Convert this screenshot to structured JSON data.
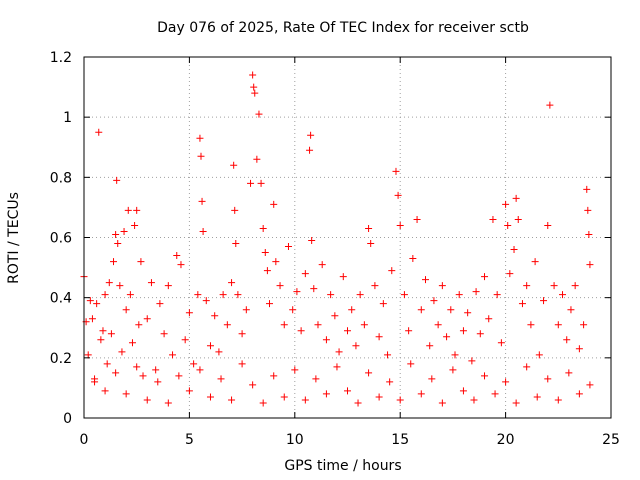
{
  "chart_data": {
    "type": "scatter",
    "title": "Day 076 of 2025, Rate Of TEC Index for receiver sctb",
    "xlabel": "GPS time / hours",
    "ylabel": "ROTI / TECUs",
    "xlim": [
      0,
      25
    ],
    "ylim": [
      0,
      1.2
    ],
    "x_ticks": [
      "0",
      "5",
      "10",
      "15",
      "20",
      "25"
    ],
    "y_ticks": [
      "0",
      "0.2",
      "0.4",
      "0.6",
      "0.8",
      "1",
      "1.2"
    ],
    "grid": true,
    "marker": "plus",
    "series_color": "#ff0000",
    "series": [
      {
        "points": [
          [
            0.0,
            0.47
          ],
          [
            0.1,
            0.32
          ],
          [
            0.2,
            0.21
          ],
          [
            0.3,
            0.39
          ],
          [
            0.4,
            0.33
          ],
          [
            0.5,
            0.13
          ],
          [
            0.6,
            0.38
          ],
          [
            0.7,
            0.95
          ],
          [
            0.8,
            0.26
          ],
          [
            0.9,
            0.29
          ],
          [
            1.0,
            0.41
          ],
          [
            1.1,
            0.18
          ],
          [
            1.2,
            0.45
          ],
          [
            1.3,
            0.28
          ],
          [
            1.4,
            0.52
          ],
          [
            1.5,
            0.61
          ],
          [
            1.55,
            0.79
          ],
          [
            1.6,
            0.58
          ],
          [
            1.7,
            0.44
          ],
          [
            1.8,
            0.22
          ],
          [
            1.9,
            0.62
          ],
          [
            2.0,
            0.36
          ],
          [
            2.1,
            0.69
          ],
          [
            2.2,
            0.41
          ],
          [
            2.3,
            0.25
          ],
          [
            2.4,
            0.64
          ],
          [
            2.5,
            0.69
          ],
          [
            2.6,
            0.31
          ],
          [
            2.7,
            0.52
          ],
          [
            2.8,
            0.14
          ],
          [
            3.0,
            0.33
          ],
          [
            3.2,
            0.45
          ],
          [
            3.4,
            0.16
          ],
          [
            3.6,
            0.38
          ],
          [
            3.8,
            0.28
          ],
          [
            4.0,
            0.44
          ],
          [
            4.2,
            0.21
          ],
          [
            4.4,
            0.54
          ],
          [
            4.6,
            0.51
          ],
          [
            4.8,
            0.26
          ],
          [
            5.0,
            0.35
          ],
          [
            5.2,
            0.18
          ],
          [
            5.4,
            0.41
          ],
          [
            5.5,
            0.93
          ],
          [
            5.55,
            0.87
          ],
          [
            5.6,
            0.72
          ],
          [
            5.65,
            0.62
          ],
          [
            5.8,
            0.39
          ],
          [
            6.0,
            0.24
          ],
          [
            6.2,
            0.34
          ],
          [
            6.4,
            0.22
          ],
          [
            6.6,
            0.41
          ],
          [
            6.8,
            0.31
          ],
          [
            7.0,
            0.45
          ],
          [
            7.1,
            0.84
          ],
          [
            7.15,
            0.69
          ],
          [
            7.2,
            0.58
          ],
          [
            7.3,
            0.41
          ],
          [
            7.5,
            0.28
          ],
          [
            7.7,
            0.36
          ],
          [
            7.9,
            0.78
          ],
          [
            8.0,
            1.14
          ],
          [
            8.05,
            1.1
          ],
          [
            8.1,
            1.08
          ],
          [
            8.2,
            0.86
          ],
          [
            8.3,
            1.01
          ],
          [
            8.4,
            0.78
          ],
          [
            8.5,
            0.63
          ],
          [
            8.6,
            0.55
          ],
          [
            8.7,
            0.49
          ],
          [
            8.8,
            0.38
          ],
          [
            9.0,
            0.71
          ],
          [
            9.1,
            0.52
          ],
          [
            9.3,
            0.44
          ],
          [
            9.5,
            0.31
          ],
          [
            9.7,
            0.57
          ],
          [
            9.9,
            0.36
          ],
          [
            10.1,
            0.42
          ],
          [
            10.3,
            0.29
          ],
          [
            10.5,
            0.48
          ],
          [
            10.7,
            0.89
          ],
          [
            10.75,
            0.94
          ],
          [
            10.8,
            0.59
          ],
          [
            10.9,
            0.43
          ],
          [
            11.1,
            0.31
          ],
          [
            11.3,
            0.51
          ],
          [
            11.5,
            0.26
          ],
          [
            11.7,
            0.41
          ],
          [
            11.9,
            0.34
          ],
          [
            12.1,
            0.22
          ],
          [
            12.3,
            0.47
          ],
          [
            12.5,
            0.29
          ],
          [
            12.7,
            0.36
          ],
          [
            12.9,
            0.24
          ],
          [
            13.1,
            0.41
          ],
          [
            13.3,
            0.31
          ],
          [
            13.5,
            0.63
          ],
          [
            13.6,
            0.58
          ],
          [
            13.8,
            0.44
          ],
          [
            14.0,
            0.27
          ],
          [
            14.2,
            0.38
          ],
          [
            14.4,
            0.21
          ],
          [
            14.6,
            0.49
          ],
          [
            14.8,
            0.82
          ],
          [
            14.9,
            0.74
          ],
          [
            15.0,
            0.64
          ],
          [
            15.2,
            0.41
          ],
          [
            15.4,
            0.29
          ],
          [
            15.6,
            0.53
          ],
          [
            15.8,
            0.66
          ],
          [
            16.0,
            0.36
          ],
          [
            16.2,
            0.46
          ],
          [
            16.4,
            0.24
          ],
          [
            16.6,
            0.39
          ],
          [
            16.8,
            0.31
          ],
          [
            17.0,
            0.44
          ],
          [
            17.2,
            0.27
          ],
          [
            17.4,
            0.36
          ],
          [
            17.6,
            0.21
          ],
          [
            17.8,
            0.41
          ],
          [
            18.0,
            0.29
          ],
          [
            18.2,
            0.35
          ],
          [
            18.4,
            0.19
          ],
          [
            18.6,
            0.42
          ],
          [
            18.8,
            0.28
          ],
          [
            19.0,
            0.47
          ],
          [
            19.2,
            0.33
          ],
          [
            19.4,
            0.66
          ],
          [
            19.6,
            0.41
          ],
          [
            19.8,
            0.25
          ],
          [
            20.0,
            0.71
          ],
          [
            20.1,
            0.64
          ],
          [
            20.2,
            0.48
          ],
          [
            20.4,
            0.56
          ],
          [
            20.5,
            0.73
          ],
          [
            20.6,
            0.66
          ],
          [
            20.8,
            0.38
          ],
          [
            21.0,
            0.44
          ],
          [
            21.2,
            0.31
          ],
          [
            21.4,
            0.52
          ],
          [
            21.6,
            0.21
          ],
          [
            21.8,
            0.39
          ],
          [
            22.0,
            0.64
          ],
          [
            22.1,
            1.04
          ],
          [
            22.3,
            0.44
          ],
          [
            22.5,
            0.31
          ],
          [
            22.7,
            0.41
          ],
          [
            22.9,
            0.26
          ],
          [
            23.1,
            0.36
          ],
          [
            23.3,
            0.44
          ],
          [
            23.5,
            0.23
          ],
          [
            23.7,
            0.31
          ],
          [
            23.85,
            0.76
          ],
          [
            23.9,
            0.69
          ],
          [
            23.95,
            0.61
          ],
          [
            24.0,
            0.51
          ],
          [
            0.5,
            0.12
          ],
          [
            1.0,
            0.09
          ],
          [
            1.5,
            0.15
          ],
          [
            2.0,
            0.08
          ],
          [
            2.5,
            0.17
          ],
          [
            3.0,
            0.06
          ],
          [
            3.5,
            0.12
          ],
          [
            4.0,
            0.05
          ],
          [
            4.5,
            0.14
          ],
          [
            5.0,
            0.09
          ],
          [
            5.5,
            0.16
          ],
          [
            6.0,
            0.07
          ],
          [
            6.5,
            0.13
          ],
          [
            7.0,
            0.06
          ],
          [
            7.5,
            0.18
          ],
          [
            8.0,
            0.11
          ],
          [
            8.5,
            0.05
          ],
          [
            9.0,
            0.14
          ],
          [
            9.5,
            0.07
          ],
          [
            10.0,
            0.16
          ],
          [
            10.5,
            0.06
          ],
          [
            11.0,
            0.13
          ],
          [
            11.5,
            0.08
          ],
          [
            12.0,
            0.17
          ],
          [
            12.5,
            0.09
          ],
          [
            13.0,
            0.05
          ],
          [
            13.5,
            0.15
          ],
          [
            14.0,
            0.07
          ],
          [
            14.5,
            0.12
          ],
          [
            15.0,
            0.06
          ],
          [
            15.5,
            0.18
          ],
          [
            16.0,
            0.08
          ],
          [
            16.5,
            0.13
          ],
          [
            17.0,
            0.05
          ],
          [
            17.5,
            0.16
          ],
          [
            18.0,
            0.09
          ],
          [
            18.5,
            0.06
          ],
          [
            19.0,
            0.14
          ],
          [
            19.5,
            0.08
          ],
          [
            20.0,
            0.12
          ],
          [
            20.5,
            0.05
          ],
          [
            21.0,
            0.17
          ],
          [
            21.5,
            0.07
          ],
          [
            22.0,
            0.13
          ],
          [
            22.5,
            0.06
          ],
          [
            23.0,
            0.15
          ],
          [
            23.5,
            0.08
          ],
          [
            24.0,
            0.11
          ]
        ]
      }
    ]
  }
}
